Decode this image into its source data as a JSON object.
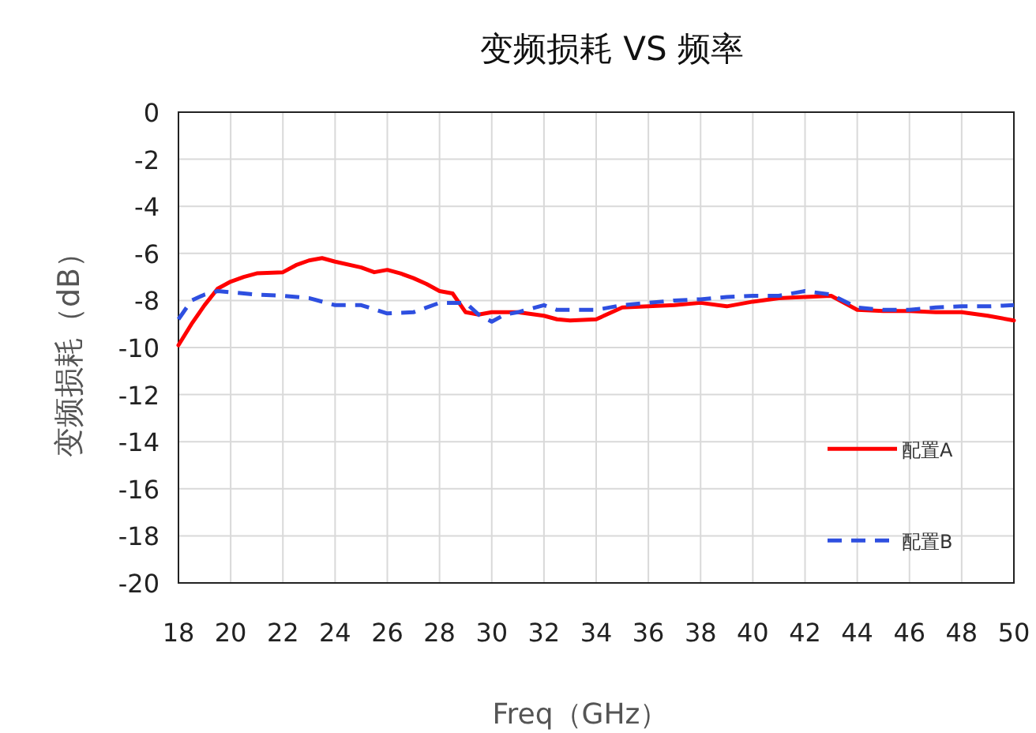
{
  "chart_data": {
    "type": "line",
    "title": "变频损耗 VS 频率",
    "xlabel": "Freq（GHz）",
    "ylabel": "变频损耗（dB）",
    "xlim": [
      18,
      50
    ],
    "xticks": [
      18,
      20,
      22,
      24,
      26,
      28,
      30,
      32,
      34,
      36,
      38,
      40,
      42,
      44,
      46,
      48,
      50
    ],
    "ylim": [
      -20,
      0
    ],
    "yticks": [
      -20,
      -18,
      -16,
      -14,
      -12,
      -10,
      -8,
      -6,
      -4,
      -2,
      0
    ],
    "grid": true,
    "legend": "right",
    "marker": "none",
    "series": [
      {
        "name": "配置A",
        "color": "#ff0000",
        "line_style": "solid",
        "x": [
          18,
          18.5,
          19,
          19.5,
          20,
          20.5,
          21,
          22,
          22.5,
          23,
          23.5,
          24,
          25,
          25.5,
          26,
          26.5,
          27,
          27.5,
          28,
          28.5,
          29,
          29.5,
          30,
          31,
          32,
          32.5,
          33,
          34,
          35,
          36,
          37,
          38,
          39,
          40,
          41,
          42,
          43,
          44,
          45,
          46,
          47,
          48,
          49,
          50
        ],
        "values": [
          -9.9,
          -9.0,
          -8.2,
          -7.5,
          -7.2,
          -7.0,
          -6.85,
          -6.8,
          -6.5,
          -6.3,
          -6.2,
          -6.35,
          -6.6,
          -6.8,
          -6.7,
          -6.85,
          -7.05,
          -7.3,
          -7.6,
          -7.7,
          -8.5,
          -8.6,
          -8.5,
          -8.5,
          -8.65,
          -8.8,
          -8.85,
          -8.8,
          -8.3,
          -8.25,
          -8.2,
          -8.1,
          -8.25,
          -8.05,
          -7.9,
          -7.85,
          -7.8,
          -8.4,
          -8.45,
          -8.45,
          -8.5,
          -8.5,
          -8.65,
          -8.85
        ]
      },
      {
        "name": "配置B",
        "color": "#2e4fe0",
        "line_style": "dashed",
        "x": [
          18,
          18.5,
          19,
          19.5,
          20,
          21,
          22,
          23,
          24,
          25,
          26,
          27,
          28,
          29,
          29.5,
          30,
          30.5,
          31,
          32,
          32.5,
          33,
          34,
          35,
          36,
          37,
          38,
          39,
          40,
          41,
          42,
          43,
          44,
          45,
          46,
          47,
          48,
          49,
          50
        ],
        "values": [
          -8.8,
          -8.0,
          -7.75,
          -7.6,
          -7.65,
          -7.75,
          -7.8,
          -7.9,
          -8.2,
          -8.2,
          -8.55,
          -8.5,
          -8.1,
          -8.1,
          -8.6,
          -8.9,
          -8.6,
          -8.5,
          -8.2,
          -8.4,
          -8.4,
          -8.4,
          -8.2,
          -8.1,
          -8.0,
          -7.95,
          -7.85,
          -7.8,
          -7.8,
          -7.6,
          -7.75,
          -8.3,
          -8.4,
          -8.4,
          -8.3,
          -8.25,
          -8.25,
          -8.2
        ]
      }
    ]
  }
}
